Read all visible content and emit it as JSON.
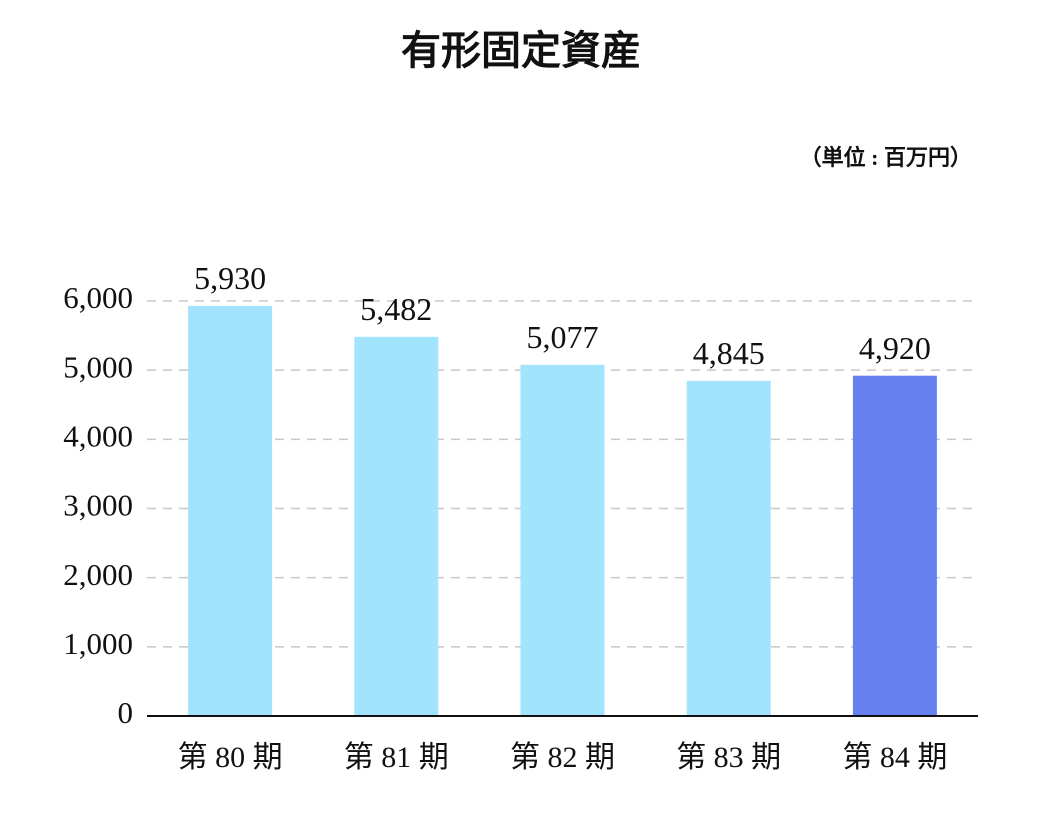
{
  "chart_data": {
    "type": "bar",
    "title": "有形固定資産",
    "subtitle": "（単位 : 百万円）",
    "categories": [
      "第 80 期",
      "第 81 期",
      "第 82 期",
      "第 83 期",
      "第 84 期"
    ],
    "values": [
      5930,
      5482,
      5077,
      4845,
      4920
    ],
    "value_labels": [
      "5,930",
      "5,482",
      "5,077",
      "4,845",
      "4,920"
    ],
    "colors": [
      "#a2e3fd",
      "#a2e3fd",
      "#a2e3fd",
      "#a2e3fd",
      "#6680ef"
    ],
    "ylim": [
      0,
      6000
    ],
    "yticks": [
      0,
      {
        "value": 1000,
        "label": "1,000"
      },
      {
        "value": 2000,
        "label": "2,000"
      },
      {
        "value": 3000,
        "label": "3,000"
      },
      {
        "value": 4000,
        "label": "4,000"
      },
      {
        "value": 5000,
        "label": "5,000"
      },
      {
        "value": 6000,
        "label": "6,000"
      }
    ],
    "grid": true
  }
}
